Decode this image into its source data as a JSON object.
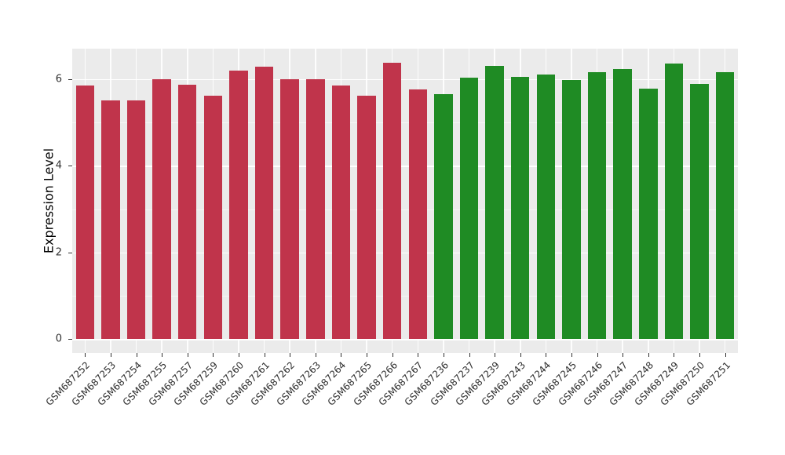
{
  "chart_data": {
    "type": "bar",
    "title": "",
    "xlabel": "",
    "ylabel": "Expression Level",
    "ylim": [
      0,
      6.7
    ],
    "yticks": [
      0,
      2,
      4,
      6
    ],
    "grid": "on",
    "legend_position": "none",
    "bars": [
      {
        "label": "GSM687252",
        "value": 5.85,
        "group": "crimson"
      },
      {
        "label": "GSM687253",
        "value": 5.5,
        "group": "crimson"
      },
      {
        "label": "GSM687254",
        "value": 5.5,
        "group": "crimson"
      },
      {
        "label": "GSM687255",
        "value": 6.0,
        "group": "crimson"
      },
      {
        "label": "GSM687257",
        "value": 5.87,
        "group": "crimson"
      },
      {
        "label": "GSM687259",
        "value": 5.62,
        "group": "crimson"
      },
      {
        "label": "GSM687260",
        "value": 6.2,
        "group": "crimson"
      },
      {
        "label": "GSM687261",
        "value": 6.28,
        "group": "crimson"
      },
      {
        "label": "GSM687262",
        "value": 6.0,
        "group": "crimson"
      },
      {
        "label": "GSM687263",
        "value": 6.0,
        "group": "crimson"
      },
      {
        "label": "GSM687264",
        "value": 5.84,
        "group": "crimson"
      },
      {
        "label": "GSM687265",
        "value": 5.62,
        "group": "crimson"
      },
      {
        "label": "GSM687266",
        "value": 6.38,
        "group": "crimson"
      },
      {
        "label": "GSM687267",
        "value": 5.75,
        "group": "crimson"
      },
      {
        "label": "GSM687236",
        "value": 5.65,
        "group": "green"
      },
      {
        "label": "GSM687237",
        "value": 6.03,
        "group": "green"
      },
      {
        "label": "GSM687239",
        "value": 6.3,
        "group": "green"
      },
      {
        "label": "GSM687243",
        "value": 6.05,
        "group": "green"
      },
      {
        "label": "GSM687244",
        "value": 6.1,
        "group": "green"
      },
      {
        "label": "GSM687245",
        "value": 5.98,
        "group": "green"
      },
      {
        "label": "GSM687246",
        "value": 6.15,
        "group": "green"
      },
      {
        "label": "GSM687247",
        "value": 6.22,
        "group": "green"
      },
      {
        "label": "GSM687248",
        "value": 5.78,
        "group": "green"
      },
      {
        "label": "GSM687249",
        "value": 6.35,
        "group": "green"
      },
      {
        "label": "GSM687250",
        "value": 5.88,
        "group": "green"
      },
      {
        "label": "GSM687251",
        "value": 6.15,
        "group": "green"
      }
    ]
  },
  "colors": {
    "crimson": "#C0344B",
    "green": "#1F8B24",
    "panel_bg": "#EBEBEB",
    "grid": "#FFFFFF",
    "axis_text": "#303030"
  }
}
